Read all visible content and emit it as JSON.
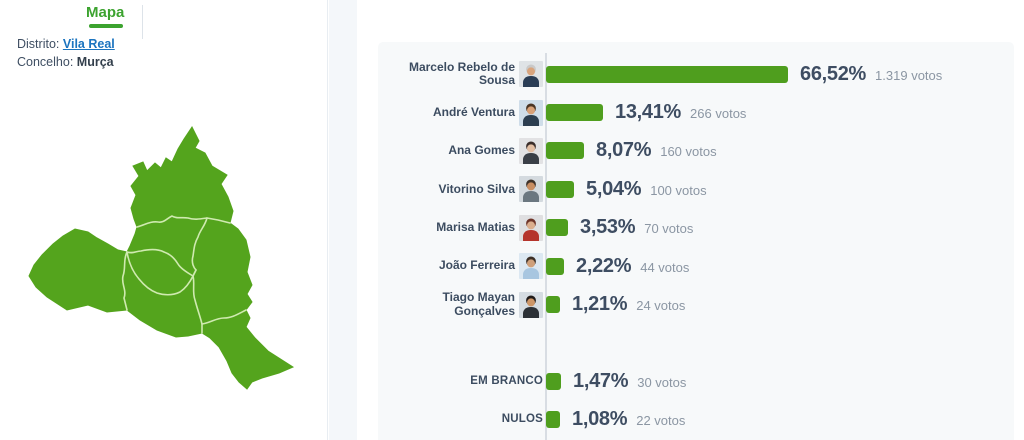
{
  "header": {
    "tab_mapa": "Mapa",
    "district_label": "Distrito:",
    "district_value": "Vila Real",
    "municipality_label": "Concelho:",
    "municipality_value": "Murça"
  },
  "colors": {
    "bar_green": "#4f9e1e",
    "map_green": "#54a41d",
    "map_border": "#cfeab0",
    "tab_green": "#3ca32f",
    "link_blue": "#1b74bf",
    "pct_text": "#3e4d62",
    "votes_text": "#8b96a3",
    "name_text": "#3c4c60",
    "axis_line": "#d8dde3",
    "panel_bg": "#f7f9fa"
  },
  "chart_data": {
    "type": "bar",
    "orientation": "horizontal",
    "value_unit": "percent of votes",
    "series": [
      {
        "name": "Marcelo Rebelo de\nSousa",
        "pct": 66.52,
        "pct_label": "66,52%",
        "votes": 1319,
        "votes_label": "1.319 votos",
        "avatar": {
          "bg": "#dfe3e6",
          "hair": "#c9c9c9",
          "skin": "#d9a57e",
          "suit": "#2a3d55"
        }
      },
      {
        "name": "André Ventura",
        "pct": 13.41,
        "pct_label": "13,41%",
        "votes": 266,
        "votes_label": "266 votos",
        "avatar": {
          "bg": "#cfdde9",
          "hair": "#4a3423",
          "skin": "#d8a178",
          "suit": "#2c3e50"
        }
      },
      {
        "name": "Ana Gomes",
        "pct": 8.07,
        "pct_label": "8,07%",
        "votes": 160,
        "votes_label": "160 votos",
        "avatar": {
          "bg": "#e2e2e4",
          "hair": "#3a2d2a",
          "skin": "#e3bfa4",
          "suit": "#3a3f47"
        }
      },
      {
        "name": "Vitorino Silva",
        "pct": 5.04,
        "pct_label": "5,04%",
        "votes": 100,
        "votes_label": "100 votos",
        "avatar": {
          "bg": "#d4dadf",
          "hair": "#3f3229",
          "skin": "#c98e62",
          "suit": "#6b7780"
        }
      },
      {
        "name": "Marisa Matias",
        "pct": 3.53,
        "pct_label": "3,53%",
        "votes": 70,
        "votes_label": "70 votos",
        "avatar": {
          "bg": "#dfdfe1",
          "hair": "#6e3428",
          "skin": "#dcae8d",
          "suit": "#b5342c"
        }
      },
      {
        "name": "João Ferreira",
        "pct": 2.22,
        "pct_label": "2,22%",
        "votes": 44,
        "votes_label": "44 votos",
        "avatar": {
          "bg": "#dce8f2",
          "hair": "#3c2f26",
          "skin": "#cfa07b",
          "suit": "#a8c6e0"
        }
      },
      {
        "name": "Tiago Mayan\nGonçalves",
        "pct": 1.21,
        "pct_label": "1,21%",
        "votes": 24,
        "votes_label": "24 votos",
        "avatar": {
          "bg": "#d5dce2",
          "hair": "#1f1a18",
          "skin": "#cd9668",
          "suit": "#2b3036"
        }
      },
      {
        "name": "EM BRANCO",
        "pct": 1.47,
        "pct_label": "1,47%",
        "votes": 30,
        "votes_label": "30 votos",
        "gap_before": true
      },
      {
        "name": "NULOS",
        "pct": 1.08,
        "pct_label": "1,08%",
        "votes": 22,
        "votes_label": "22 votos"
      }
    ]
  }
}
